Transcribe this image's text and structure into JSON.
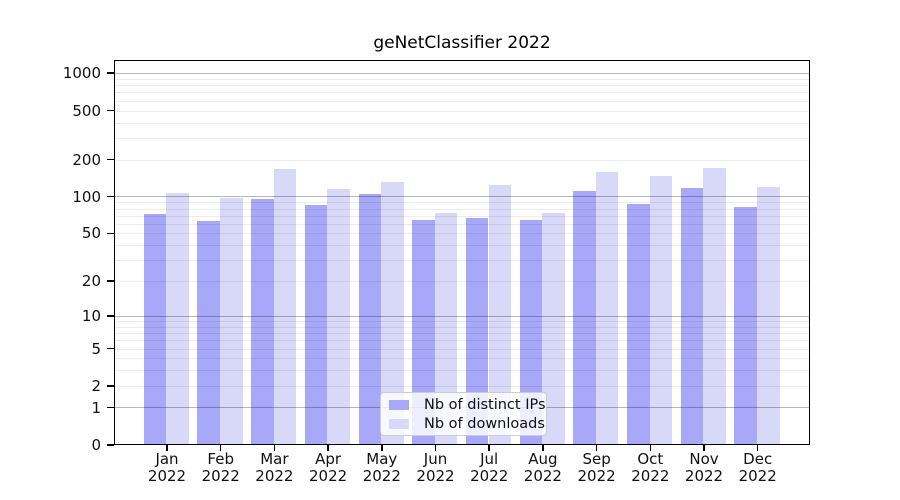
{
  "chart_data": {
    "type": "bar",
    "title": "geNetClassifier 2022",
    "categories": [
      "Jan",
      "Feb",
      "Mar",
      "Apr",
      "May",
      "Jun",
      "Jul",
      "Aug",
      "Sep",
      "Oct",
      "Nov",
      "Dec"
    ],
    "year_label": "2022",
    "series": [
      {
        "name": "Nb of distinct IPs",
        "color": "#a8a8f8",
        "values": [
          72,
          63,
          95,
          85,
          105,
          64,
          67,
          65,
          112,
          88,
          117,
          83
        ]
      },
      {
        "name": "Nb of downloads",
        "color": "#d8d8f8",
        "values": [
          108,
          97,
          167,
          115,
          133,
          74,
          124,
          74,
          160,
          147,
          171,
          120
        ]
      }
    ],
    "y_ticks": [
      1000,
      500,
      200,
      100,
      50,
      20,
      10,
      5,
      2,
      1,
      0
    ],
    "y_scale": "log10(value+1)",
    "ylim": [
      0,
      1270
    ],
    "grid": true,
    "legend_position": "lower center",
    "colors": {
      "bar_distinct_ips": "#a8a8f8",
      "bar_downloads": "#d8d8f8",
      "major_grid": "rgba(0,0,0,0.28)",
      "minor_grid": "rgba(0,0,0,0.075)",
      "axis": "#000000",
      "background": "#ffffff"
    }
  }
}
